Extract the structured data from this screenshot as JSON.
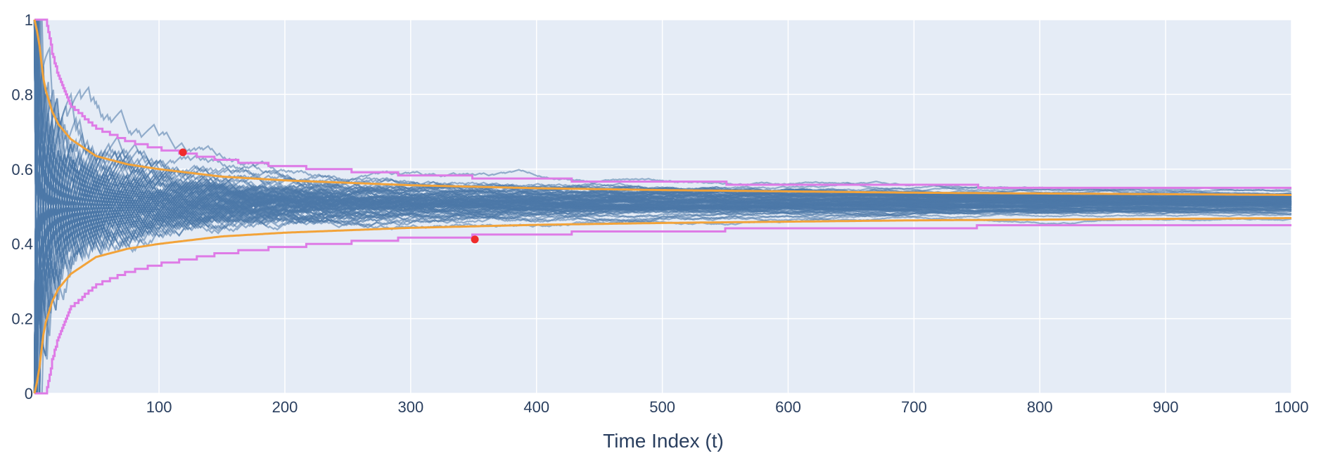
{
  "chart_data": {
    "type": "line",
    "title": "",
    "xlabel": "Time Index (t)",
    "ylabel": "",
    "xlim": [
      1,
      1000
    ],
    "ylim": [
      0,
      1
    ],
    "x_ticks": [
      100,
      200,
      300,
      400,
      500,
      600,
      700,
      800,
      900,
      1000
    ],
    "x_tick_labels": [
      "100",
      "200",
      "300",
      "400",
      "500",
      "600",
      "700",
      "800",
      "900",
      "1000"
    ],
    "y_ticks": [
      0,
      0.2,
      0.4,
      0.6,
      0.8,
      1
    ],
    "y_tick_labels": [
      "0",
      "0.2",
      "0.4",
      "0.6",
      "0.8",
      "1"
    ],
    "grid": true,
    "legend": "none",
    "colors": {
      "plot_background": "#e5ecf6",
      "grid": "#ffffff",
      "paths": "#4c78a8",
      "inner_band": "#f2a33a",
      "outer_band": "#de7be6",
      "crossing_points": "#ef2b2b",
      "text": "#2a3f5f"
    },
    "center": 0.5,
    "path_count": 100,
    "inner_band": {
      "x": [
        1,
        3,
        5,
        8,
        10,
        15,
        20,
        30,
        50,
        75,
        100,
        150,
        200,
        300,
        400,
        500,
        700,
        1000
      ],
      "upper": [
        1.0,
        0.97,
        0.93,
        0.845,
        0.81,
        0.755,
        0.72,
        0.68,
        0.635,
        0.613,
        0.6,
        0.58,
        0.57,
        0.557,
        0.549,
        0.544,
        0.537,
        0.531
      ],
      "lower": [
        0.0,
        0.03,
        0.07,
        0.155,
        0.19,
        0.245,
        0.28,
        0.32,
        0.365,
        0.387,
        0.4,
        0.42,
        0.43,
        0.443,
        0.451,
        0.456,
        0.463,
        0.469
      ]
    },
    "outer_band": {
      "x": [
        1,
        10,
        12,
        15,
        20,
        30,
        50,
        75,
        100,
        150,
        200,
        300,
        400,
        500,
        700,
        1000
      ],
      "upper": [
        1.0,
        1.0,
        0.97,
        0.91,
        0.85,
        0.77,
        0.71,
        0.675,
        0.655,
        0.625,
        0.608,
        0.585,
        0.573,
        0.565,
        0.555,
        0.55
      ],
      "lower": [
        0.0,
        0.0,
        0.03,
        0.09,
        0.15,
        0.23,
        0.29,
        0.325,
        0.345,
        0.375,
        0.392,
        0.415,
        0.427,
        0.435,
        0.445,
        0.45
      ]
    },
    "crossing_points": [
      {
        "x": 119,
        "y": 0.645
      },
      {
        "x": 351,
        "y": 0.412
      }
    ]
  }
}
